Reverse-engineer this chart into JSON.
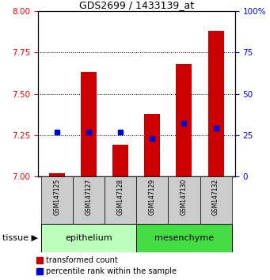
{
  "title": "GDS2699 / 1433139_at",
  "samples": [
    "GSM147125",
    "GSM147127",
    "GSM147128",
    "GSM147129",
    "GSM147130",
    "GSM147132"
  ],
  "bar_values": [
    7.02,
    7.63,
    7.19,
    7.38,
    7.68,
    7.88
  ],
  "bar_base": 7.0,
  "percentile_values": [
    27,
    27,
    27,
    23,
    32,
    29
  ],
  "left_ylim": [
    7.0,
    8.0
  ],
  "left_yticks": [
    7.0,
    7.25,
    7.5,
    7.75,
    8.0
  ],
  "right_ylim": [
    0,
    100
  ],
  "right_yticks": [
    0,
    25,
    50,
    75,
    100
  ],
  "bar_color": "#cc0000",
  "marker_color": "#0000cc",
  "epithelium_color": "#bbffbb",
  "mesenchyme_color": "#44dd44",
  "sample_bg_color": "#cccccc",
  "epithelium_label": "epithelium",
  "mesenchyme_label": "mesenchyme",
  "tissue_label": "tissue",
  "legend_bar_label": "transformed count",
  "legend_marker_label": "percentile rank within the sample",
  "bar_width": 0.5
}
